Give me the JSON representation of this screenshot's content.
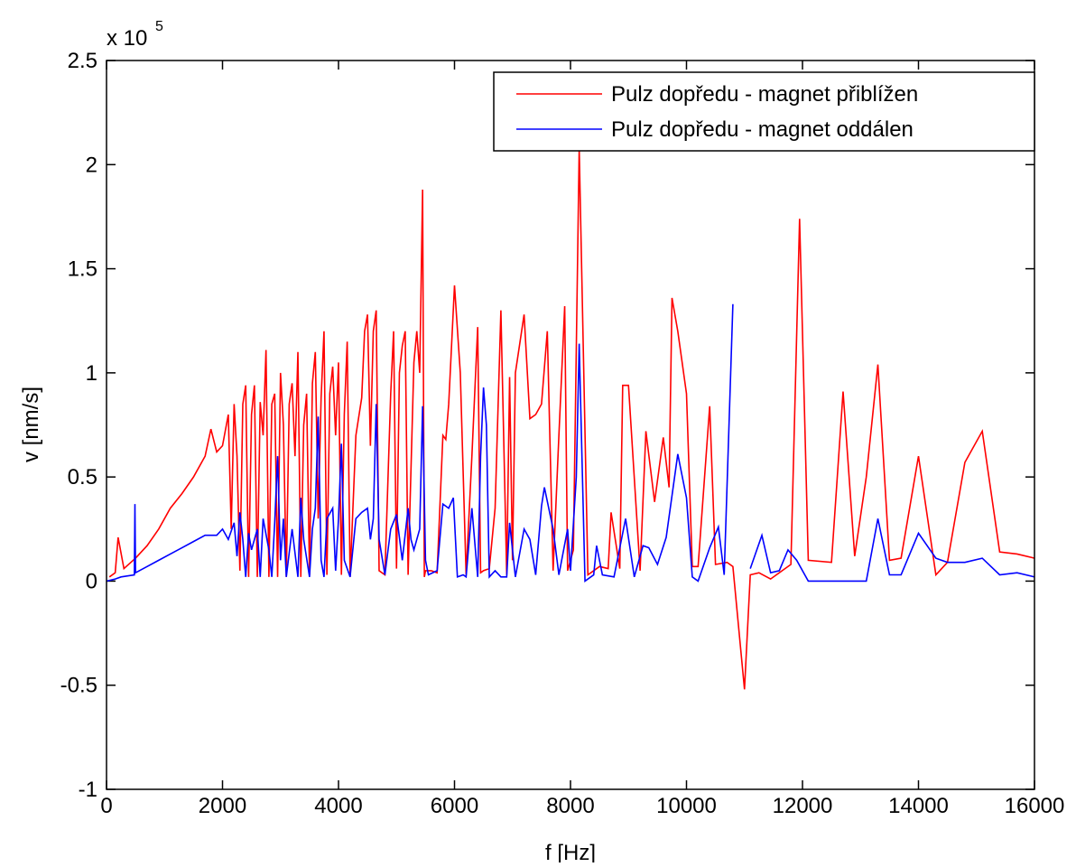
{
  "chart_data": {
    "type": "line",
    "xlabel": "f [Hz]",
    "ylabel": "v [nm/s]",
    "y_multiplier": {
      "base": "x 10",
      "exponent": "5"
    },
    "xlim": [
      0,
      16000
    ],
    "xticks": [
      0,
      2000,
      4000,
      6000,
      8000,
      10000,
      12000,
      14000,
      16000
    ],
    "ylim": [
      -1,
      2.5
    ],
    "yticks": [
      -1,
      -0.5,
      0,
      0.5,
      1,
      1.5,
      2,
      2.5
    ],
    "grid": false,
    "legend": "upper right",
    "series": [
      {
        "name": "Pulz dopředu - magnet přiblížen",
        "color": "#ff0000",
        "x": [
          50,
          150,
          200,
          300,
          500,
          700,
          900,
          1100,
          1300,
          1500,
          1700,
          1800,
          1900,
          2000,
          2100,
          2150,
          2200,
          2250,
          2300,
          2350,
          2400,
          2450,
          2500,
          2550,
          2600,
          2650,
          2700,
          2750,
          2800,
          2850,
          2900,
          2950,
          3000,
          3050,
          3100,
          3150,
          3200,
          3250,
          3300,
          3350,
          3400,
          3450,
          3500,
          3550,
          3600,
          3650,
          3700,
          3750,
          3800,
          3850,
          3900,
          3950,
          4000,
          4050,
          4100,
          4150,
          4200,
          4300,
          4400,
          4450,
          4500,
          4550,
          4600,
          4650,
          4700,
          4800,
          4900,
          4950,
          5000,
          5050,
          5100,
          5150,
          5200,
          5300,
          5350,
          5400,
          5450,
          5480,
          5500,
          5600,
          5700,
          5800,
          5850,
          5900,
          6000,
          6100,
          6200,
          6300,
          6400,
          6450,
          6500,
          6600,
          6700,
          6800,
          6900,
          6950,
          7000,
          7050,
          7200,
          7300,
          7400,
          7500,
          7600,
          7700,
          7800,
          7900,
          7950,
          8050,
          8150,
          8300,
          8500,
          8650,
          8700,
          8850,
          8900,
          9000,
          9200,
          9300,
          9450,
          9600,
          9700,
          9750,
          9850,
          10000,
          10100,
          10200,
          10400,
          10500,
          10700,
          10800,
          11000,
          11100,
          11250,
          11450,
          11650,
          11800,
          11950,
          12100,
          12500,
          12700,
          12900,
          13100,
          13300,
          13500,
          13700,
          14000,
          14300,
          14500,
          14800,
          15100,
          15400,
          15700,
          16000
        ],
        "values": [
          0.02,
          0.04,
          0.21,
          0.06,
          0.11,
          0.17,
          0.25,
          0.35,
          0.42,
          0.5,
          0.6,
          0.73,
          0.62,
          0.65,
          0.8,
          0.25,
          0.85,
          0.6,
          0.05,
          0.85,
          0.94,
          0.02,
          0.8,
          0.94,
          0.02,
          0.86,
          0.7,
          1.11,
          0.02,
          0.85,
          0.9,
          0.02,
          1.0,
          0.75,
          0.02,
          0.85,
          0.95,
          0.6,
          1.1,
          0.02,
          0.75,
          0.9,
          0.03,
          0.95,
          1.1,
          0.3,
          0.88,
          1.2,
          0.03,
          0.9,
          1.03,
          0.7,
          1.05,
          0.03,
          0.8,
          1.15,
          0.02,
          0.7,
          0.88,
          1.2,
          1.28,
          0.65,
          1.2,
          1.3,
          0.05,
          0.03,
          0.9,
          1.2,
          0.06,
          1.0,
          1.13,
          1.2,
          0.03,
          1.05,
          1.2,
          1.0,
          1.88,
          0.02,
          0.05,
          0.05,
          0.04,
          0.7,
          0.68,
          0.85,
          1.42,
          1.0,
          0.03,
          0.6,
          1.22,
          0.04,
          0.05,
          0.06,
          0.35,
          1.3,
          0.03,
          0.98,
          0.1,
          1.0,
          1.28,
          0.78,
          0.8,
          0.85,
          1.2,
          0.05,
          0.7,
          1.32,
          0.05,
          0.15,
          2.08,
          0.03,
          0.07,
          0.06,
          0.33,
          0.06,
          0.94,
          0.94,
          0.05,
          0.72,
          0.38,
          0.69,
          0.45,
          1.36,
          1.2,
          0.9,
          0.07,
          0.07,
          0.84,
          0.08,
          0.09,
          0.07,
          -0.52,
          0.03,
          0.04,
          0.01,
          0.05,
          0.08,
          1.74,
          0.1,
          0.09,
          0.91,
          0.12,
          0.5,
          1.04,
          0.1,
          0.11,
          0.6,
          0.03,
          0.09,
          0.57,
          0.72,
          0.14,
          0.13,
          0.11
        ]
      },
      {
        "name": "Pulz dopředu - magnet oddálen",
        "color": "#0000ff",
        "x": [
          0,
          150,
          250,
          480,
          490,
          500,
          700,
          900,
          1100,
          1300,
          1500,
          1700,
          1900,
          2000,
          2100,
          2200,
          2250,
          2300,
          2350,
          2400,
          2450,
          2500,
          2600,
          2650,
          2700,
          2800,
          2850,
          2900,
          2950,
          3000,
          3050,
          3100,
          3200,
          3300,
          3350,
          3400,
          3500,
          3550,
          3600,
          3650,
          3700,
          3750,
          3800,
          3900,
          3950,
          4000,
          4050,
          4100,
          4200,
          4300,
          4400,
          4500,
          4550,
          4600,
          4650,
          4700,
          4800,
          4900,
          5000,
          5100,
          5200,
          5250,
          5300,
          5400,
          5450,
          5500,
          5550,
          5700,
          5800,
          5900,
          5980,
          6050,
          6150,
          6200,
          6300,
          6400,
          6450,
          6500,
          6550,
          6600,
          6700,
          6800,
          6900,
          6950,
          7050,
          7200,
          7300,
          7400,
          7500,
          7550,
          7700,
          7800,
          7950,
          8000,
          8100,
          8150,
          8250,
          8400,
          8450,
          8550,
          8750,
          8950,
          9100,
          9250,
          9350,
          9500,
          9650,
          9850,
          10000,
          10100,
          10200,
          10400,
          10550,
          10650,
          10800,
          10950,
          11100,
          11300,
          11450,
          11600,
          11750,
          11900,
          12100,
          13100,
          13300,
          13500,
          13700,
          14000,
          14300,
          14500,
          14800,
          15100,
          15400,
          15700,
          16000
        ],
        "values": [
          0.0,
          0.01,
          0.02,
          0.03,
          0.37,
          0.04,
          0.07,
          0.1,
          0.13,
          0.16,
          0.19,
          0.22,
          0.22,
          0.25,
          0.2,
          0.28,
          0.12,
          0.33,
          0.2,
          0.02,
          0.23,
          0.15,
          0.25,
          0.02,
          0.3,
          0.15,
          0.02,
          0.28,
          0.6,
          0.1,
          0.3,
          0.02,
          0.25,
          0.02,
          0.4,
          0.2,
          0.02,
          0.25,
          0.35,
          0.79,
          0.1,
          0.02,
          0.3,
          0.35,
          0.05,
          0.3,
          0.66,
          0.1,
          0.02,
          0.3,
          0.33,
          0.35,
          0.2,
          0.3,
          0.85,
          0.2,
          0.03,
          0.25,
          0.32,
          0.1,
          0.35,
          0.2,
          0.15,
          0.25,
          0.84,
          0.1,
          0.03,
          0.05,
          0.37,
          0.35,
          0.4,
          0.02,
          0.03,
          0.02,
          0.35,
          0.02,
          0.6,
          0.93,
          0.75,
          0.02,
          0.05,
          0.02,
          0.02,
          0.28,
          0.02,
          0.25,
          0.2,
          0.03,
          0.36,
          0.45,
          0.25,
          0.03,
          0.25,
          0.05,
          0.5,
          1.14,
          0.0,
          0.03,
          0.17,
          0.03,
          0.02,
          0.3,
          0.02,
          0.17,
          0.16,
          0.08,
          0.21,
          0.61,
          0.4,
          0.02,
          0.0,
          0.16,
          0.26,
          0.03,
          1.33,
          null,
          0.06,
          0.22,
          0.04,
          0.05,
          0.15,
          0.1,
          0.0,
          0.0,
          0.3,
          0.03,
          0.03,
          0.23,
          0.11,
          0.09,
          0.09,
          0.11,
          0.03,
          0.04,
          0.02
        ]
      }
    ]
  }
}
